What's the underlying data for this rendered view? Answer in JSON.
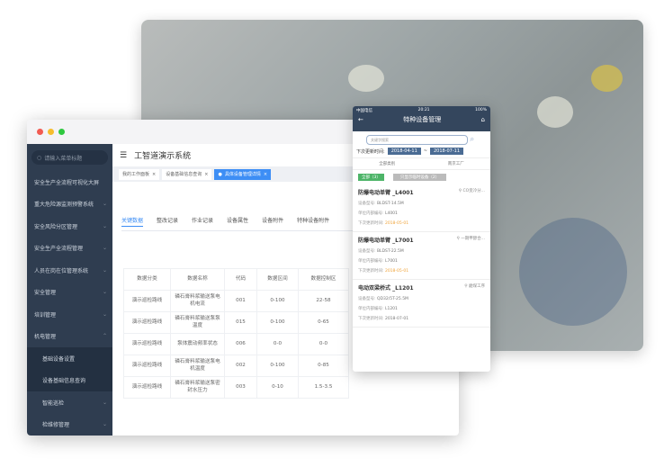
{
  "desktop": {
    "app_title": "工智道演示系统",
    "search_placeholder": "请输入菜单标题",
    "menu": [
      {
        "label": "安全生产全流程可视化大屏",
        "chev": ""
      },
      {
        "label": "重大危险源监测预警系统",
        "chev": "⌄"
      },
      {
        "label": "安全风险分区管理",
        "chev": "⌄"
      },
      {
        "label": "安全生产全流程管理",
        "chev": "⌄"
      },
      {
        "label": "人员在岗在位管理系统",
        "chev": "⌄"
      },
      {
        "label": "安全管理",
        "chev": "⌄"
      },
      {
        "label": "培训管理",
        "chev": "⌄"
      },
      {
        "label": "机电管理",
        "chev": "⌃"
      }
    ],
    "submenu": [
      "基础设备设置",
      "设备基础信息查询"
    ],
    "menu_after": [
      {
        "label": "智能巡检",
        "chev": "⌄"
      },
      {
        "label": "检维修管理",
        "chev": "⌄"
      }
    ],
    "open_tabs": [
      "我的工作面板",
      "设备基础信息查询",
      "具体设备管理详情"
    ],
    "page_tabs": [
      "关键数据",
      "整改记录",
      "作业记录",
      "设备属性",
      "设备附件",
      "特种设备附件"
    ],
    "table": {
      "headers": [
        "数据分类",
        "数据名称",
        "代码",
        "数据区间",
        "数据控制区"
      ],
      "rows": [
        [
          "演示巡检路线",
          "磷石膏料浆输送泵电机电流",
          "001",
          "0-100",
          "22-58"
        ],
        [
          "演示巡检路线",
          "磷石膏料浆输送泵泵温度",
          "015",
          "0-100",
          "0-65"
        ],
        [
          "演示巡检路线",
          "泵体震动频率状态",
          "006",
          "0-0",
          "0-0"
        ],
        [
          "演示巡检路线",
          "磷石膏料浆输送泵电机温度",
          "002",
          "0-100",
          "0-85"
        ],
        [
          "演示巡检路线",
          "磷石膏料浆输送泵密封水压力",
          "003",
          "0-10",
          "1.5-3.5"
        ]
      ]
    }
  },
  "mobile": {
    "carrier": "中国电信",
    "time": "20:21",
    "battery": "100%",
    "title": "特种设备管理",
    "search_placeholder": "关键字搜索",
    "date_label": "下次更新时间:",
    "date_from": "2018-04-11",
    "date_sep": "~",
    "date_to": "2018-07-11",
    "select_type": "全部类别",
    "select_factory": "南京工厂",
    "filter_all": "全部（3）",
    "filter_temp": "只显示临时设备（2）",
    "items": [
      {
        "title": "防爆电动单臂 _L4001",
        "loc": "CO变冷分...",
        "model": "BLDST-14.5M",
        "code": "L4001",
        "next": "2018-05-01",
        "overdue": true
      },
      {
        "title": "防爆电动单臂 _L7001",
        "loc": "一期甲醇合...",
        "model": "BLDST-22.5M",
        "code": "L7001",
        "next": "2018-05-01",
        "overdue": true
      },
      {
        "title": "电动双梁桥式 _L1201",
        "loc": "磨煤工序",
        "model": "QD32/5T-25.5M",
        "code": "L1201",
        "next": "2018-07-01",
        "overdue": false
      }
    ],
    "labels": {
      "model": "设备型号:",
      "code": "单位内部编号:",
      "next": "下次更新时间:"
    }
  }
}
